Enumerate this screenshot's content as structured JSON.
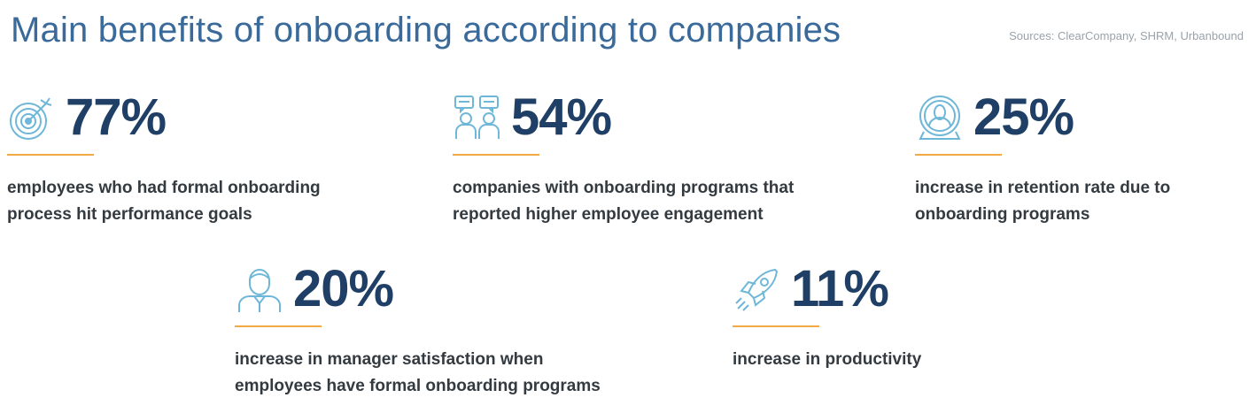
{
  "header": {
    "title": "Main benefits of onboarding according to companies",
    "sources": "Sources: ClearCompany, SHRM, Urbanbound"
  },
  "colors": {
    "title": "#3a6a9a",
    "value": "#1f3f66",
    "accent_rule": "#f0a943",
    "icon": "#6fb7d8",
    "text": "#333a40"
  },
  "stats": [
    {
      "icon": "target-icon",
      "value": "77%",
      "line1": "employees who had formal onboarding",
      "line2": "process hit performance goals"
    },
    {
      "icon": "team-chat-icon",
      "value": "54%",
      "line1": "companies with onboarding programs that",
      "line2": "reported higher employee engagement"
    },
    {
      "icon": "employee-badge-icon",
      "value": "25%",
      "line1": "increase in retention rate due to",
      "line2": "onboarding programs"
    },
    {
      "icon": "manager-icon",
      "value": "20%",
      "line1": "increase in manager satisfaction when",
      "line2": "employees have formal onboarding programs"
    },
    {
      "icon": "rocket-icon",
      "value": "11%",
      "line1": "increase in productivity",
      "line2": ""
    }
  ]
}
